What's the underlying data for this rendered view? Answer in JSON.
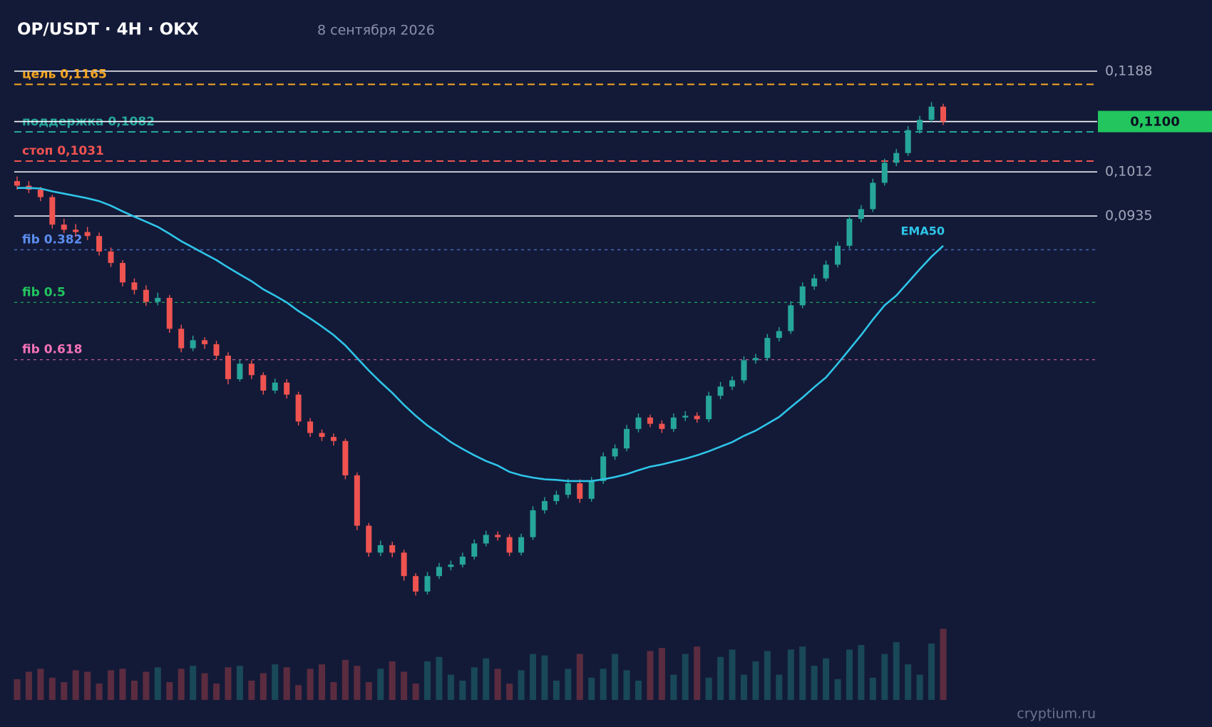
{
  "chart_data": {
    "type": "candlestick",
    "title": "OP/USDT · 4H · OKX",
    "subtitle": "8 сентября 2026",
    "footer": "cryptium.ru",
    "ylim": [
      0.0259,
      0.1204
    ],
    "yticks": [
      {
        "value": 0.1188,
        "label": "0,1188"
      },
      {
        "value": 0.1012,
        "label": "0,1012"
      },
      {
        "value": 0.0935,
        "label": "0,0935"
      }
    ],
    "up_color": "#26a69a",
    "down_color": "#ef5350",
    "last_price": {
      "value": 0.11,
      "label": "0,1100",
      "color": "#22c55e"
    },
    "levels": [
      {
        "label": "цель 0,1165",
        "value": 0.1165,
        "color": "#f5a623",
        "style": "dashed"
      },
      {
        "label": "поддержка 0,1082",
        "value": 0.1082,
        "color": "#26a69a",
        "style": "dashed"
      },
      {
        "label": "стоп 0,1031",
        "value": 0.1031,
        "color": "#ef5350",
        "style": "dashed"
      },
      {
        "label": "fib 0.382",
        "value": 0.0876,
        "color": "#5b8def",
        "style": "dotted"
      },
      {
        "label": "fib 0.5",
        "value": 0.0784,
        "color": "#22c55e",
        "style": "dotted"
      },
      {
        "label": "fib 0.618",
        "value": 0.0684,
        "color": "#f472b6",
        "style": "dotted"
      }
    ],
    "candles": [
      [
        0.0996,
        0.1004,
        0.0981,
        0.0988
      ],
      [
        0.0988,
        0.0996,
        0.0975,
        0.0981
      ],
      [
        0.0981,
        0.0986,
        0.0961,
        0.0968
      ],
      [
        0.0968,
        0.0972,
        0.0913,
        0.092
      ],
      [
        0.092,
        0.093,
        0.0905,
        0.0911
      ],
      [
        0.0911,
        0.0921,
        0.0899,
        0.0907
      ],
      [
        0.0907,
        0.0916,
        0.0893,
        0.09
      ],
      [
        0.09,
        0.0906,
        0.0866,
        0.0873
      ],
      [
        0.0873,
        0.088,
        0.0846,
        0.0853
      ],
      [
        0.0853,
        0.0858,
        0.0812,
        0.0819
      ],
      [
        0.0819,
        0.0826,
        0.0798,
        0.0806
      ],
      [
        0.0806,
        0.0814,
        0.0778,
        0.0785
      ],
      [
        0.0785,
        0.0801,
        0.0779,
        0.0792
      ],
      [
        0.0792,
        0.0797,
        0.0731,
        0.0738
      ],
      [
        0.0738,
        0.0745,
        0.0697,
        0.0704
      ],
      [
        0.0704,
        0.0726,
        0.0699,
        0.0718
      ],
      [
        0.0718,
        0.0723,
        0.0703,
        0.0711
      ],
      [
        0.0711,
        0.0717,
        0.0684,
        0.0691
      ],
      [
        0.0691,
        0.0697,
        0.0641,
        0.065
      ],
      [
        0.065,
        0.0684,
        0.0646,
        0.0677
      ],
      [
        0.0677,
        0.0683,
        0.065,
        0.0657
      ],
      [
        0.0657,
        0.0662,
        0.0623,
        0.063
      ],
      [
        0.063,
        0.0651,
        0.0625,
        0.0644
      ],
      [
        0.0644,
        0.065,
        0.0616,
        0.0623
      ],
      [
        0.0623,
        0.0628,
        0.0569,
        0.0576
      ],
      [
        0.0576,
        0.0582,
        0.0549,
        0.0556
      ],
      [
        0.0556,
        0.0562,
        0.0542,
        0.0549
      ],
      [
        0.0549,
        0.0555,
        0.0534,
        0.0542
      ],
      [
        0.0542,
        0.0546,
        0.0475,
        0.0482
      ],
      [
        0.0482,
        0.0487,
        0.0386,
        0.0394
      ],
      [
        0.0394,
        0.0399,
        0.034,
        0.0347
      ],
      [
        0.0347,
        0.0368,
        0.0341,
        0.036
      ],
      [
        0.036,
        0.0366,
        0.0339,
        0.0347
      ],
      [
        0.0347,
        0.0352,
        0.0298,
        0.0306
      ],
      [
        0.0306,
        0.0311,
        0.0272,
        0.0279
      ],
      [
        0.0279,
        0.0313,
        0.0274,
        0.0306
      ],
      [
        0.0306,
        0.0329,
        0.0301,
        0.0322
      ],
      [
        0.0322,
        0.0333,
        0.0316,
        0.0326
      ],
      [
        0.0326,
        0.0347,
        0.0321,
        0.034
      ],
      [
        0.034,
        0.037,
        0.0335,
        0.0363
      ],
      [
        0.0363,
        0.0385,
        0.0358,
        0.0378
      ],
      [
        0.0378,
        0.0384,
        0.0368,
        0.0374
      ],
      [
        0.0374,
        0.0379,
        0.0341,
        0.0347
      ],
      [
        0.0347,
        0.038,
        0.0342,
        0.0374
      ],
      [
        0.0374,
        0.0428,
        0.0369,
        0.0421
      ],
      [
        0.0421,
        0.0444,
        0.0415,
        0.0437
      ],
      [
        0.0437,
        0.0455,
        0.0431,
        0.0448
      ],
      [
        0.0448,
        0.0476,
        0.0442,
        0.0468
      ],
      [
        0.0468,
        0.0475,
        0.0434,
        0.0441
      ],
      [
        0.0441,
        0.0479,
        0.0436,
        0.0472
      ],
      [
        0.0472,
        0.0522,
        0.0467,
        0.0515
      ],
      [
        0.0515,
        0.0536,
        0.0509,
        0.0529
      ],
      [
        0.0529,
        0.057,
        0.0524,
        0.0563
      ],
      [
        0.0563,
        0.059,
        0.0557,
        0.0583
      ],
      [
        0.0583,
        0.0588,
        0.0566,
        0.0572
      ],
      [
        0.0572,
        0.0578,
        0.0556,
        0.0563
      ],
      [
        0.0563,
        0.059,
        0.0558,
        0.0583
      ],
      [
        0.0583,
        0.0594,
        0.0577,
        0.0586
      ],
      [
        0.0586,
        0.0592,
        0.0574,
        0.058
      ],
      [
        0.058,
        0.0628,
        0.0575,
        0.0621
      ],
      [
        0.0621,
        0.0645,
        0.0615,
        0.0637
      ],
      [
        0.0637,
        0.0655,
        0.0631,
        0.0648
      ],
      [
        0.0648,
        0.069,
        0.0643,
        0.0683
      ],
      [
        0.0683,
        0.0694,
        0.0677,
        0.0687
      ],
      [
        0.0687,
        0.0729,
        0.0682,
        0.0722
      ],
      [
        0.0722,
        0.0741,
        0.0716,
        0.0734
      ],
      [
        0.0734,
        0.0786,
        0.0729,
        0.0779
      ],
      [
        0.0779,
        0.0819,
        0.0774,
        0.0812
      ],
      [
        0.0812,
        0.0833,
        0.0806,
        0.0826
      ],
      [
        0.0826,
        0.0857,
        0.0821,
        0.085
      ],
      [
        0.085,
        0.089,
        0.0845,
        0.0883
      ],
      [
        0.0883,
        0.0937,
        0.0878,
        0.093
      ],
      [
        0.093,
        0.0954,
        0.0924,
        0.0947
      ],
      [
        0.0947,
        0.1,
        0.0942,
        0.0993
      ],
      [
        0.0993,
        0.1035,
        0.0988,
        0.1028
      ],
      [
        0.1028,
        0.1052,
        0.1022,
        0.1045
      ],
      [
        0.1045,
        0.1092,
        0.104,
        0.1085
      ],
      [
        0.1085,
        0.111,
        0.1079,
        0.1103
      ],
      [
        0.1103,
        0.1134,
        0.1098,
        0.1126
      ],
      [
        0.1126,
        0.1131,
        0.1094,
        0.11
      ]
    ],
    "volume": [
      28,
      38,
      42,
      30,
      24,
      40,
      38,
      22,
      40,
      42,
      26,
      38,
      44,
      24,
      42,
      46,
      36,
      22,
      44,
      46,
      26,
      36,
      48,
      44,
      20,
      42,
      48,
      24,
      54,
      46,
      24,
      42,
      52,
      38,
      22,
      52,
      58,
      34,
      26,
      44,
      56,
      42,
      22,
      40,
      62,
      60,
      26,
      42,
      62,
      30,
      42,
      62,
      40,
      26,
      66,
      70,
      34,
      62,
      72,
      30,
      58,
      68,
      34,
      52,
      66,
      34,
      68,
      72,
      46,
      56,
      28,
      68,
      74,
      30,
      62,
      78,
      48,
      34,
      76,
      96
    ],
    "vlim": [
      0,
      100
    ],
    "ema": {
      "name": "EMA50",
      "color": "#2ec5e8",
      "values": [
        0.0984,
        0.0984,
        0.0983,
        0.0978,
        0.0974,
        0.097,
        0.0966,
        0.0961,
        0.0953,
        0.0943,
        0.0934,
        0.0925,
        0.0916,
        0.0904,
        0.0891,
        0.088,
        0.0869,
        0.0858,
        0.0845,
        0.0833,
        0.0821,
        0.0807,
        0.0796,
        0.0784,
        0.0769,
        0.0756,
        0.0742,
        0.0727,
        0.0709,
        0.0687,
        0.0665,
        0.0645,
        0.0626,
        0.0605,
        0.0586,
        0.0569,
        0.0555,
        0.054,
        0.0528,
        0.0517,
        0.0507,
        0.0499,
        0.0488,
        0.0482,
        0.0478,
        0.0475,
        0.0474,
        0.0472,
        0.0472,
        0.0472,
        0.0475,
        0.0479,
        0.0484,
        0.0491,
        0.0497,
        0.0501,
        0.0506,
        0.0511,
        0.0517,
        0.0524,
        0.0532,
        0.054,
        0.0551,
        0.056,
        0.0572,
        0.0584,
        0.0601,
        0.0618,
        0.0636,
        0.0653,
        0.0677,
        0.0702,
        0.0727,
        0.0754,
        0.0779,
        0.0796,
        0.0819,
        0.0842,
        0.0864,
        0.0883
      ]
    }
  }
}
